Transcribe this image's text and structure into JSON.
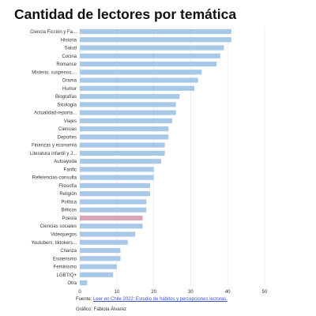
{
  "title": "Cantidad de lectores por temática",
  "source": {
    "prefix": "Fuente: ",
    "link_text": "Leer en Chile 2022: Estudio de hábitos y percepciones lectoras."
  },
  "credit": "Gráfico: Fabiola Álvarez",
  "colors": {
    "bar": "#a8c8e8",
    "highlight": "#d9a3b8"
  },
  "chart_data": {
    "type": "bar",
    "orientation": "horizontal",
    "title": "Cantidad de lectores por temática",
    "xlabel": "",
    "ylabel": "",
    "xlim": [
      0,
      50
    ],
    "xticks": [
      0,
      10,
      20,
      30,
      40,
      50
    ],
    "grid": true,
    "highlight_category": "Poesía",
    "categories": [
      "Ciencia Ficción y Fa...",
      "Historia",
      "Salud",
      "Cocina",
      "Romance",
      "Misterio, suspenso,...",
      "Drama",
      "Humor",
      "Biografías",
      "Sicología",
      "Actualidad-reporta...",
      "Viajes",
      "Ciencias",
      "Deportes",
      "Finanzas y economía",
      "Literatura Infantil y J...",
      "Autoayuda",
      "Fanfic",
      "Referencias-consulta",
      "Filosofía",
      "Religión",
      "Política",
      "Bélicos",
      "Poesía",
      "Ciencias sociales",
      "Videojuegos",
      "Youtubers, tiktokers...",
      "Crianza",
      "Esoterismo",
      "Feminismo",
      "LGBTIQ+",
      "Otra"
    ],
    "values": [
      41,
      41,
      39,
      38,
      37,
      33,
      32,
      31,
      27,
      26,
      26,
      25,
      24,
      24,
      23,
      23,
      22,
      20,
      20,
      19,
      19,
      18,
      18,
      17,
      17,
      15,
      13,
      11,
      11,
      10,
      9,
      2
    ]
  }
}
